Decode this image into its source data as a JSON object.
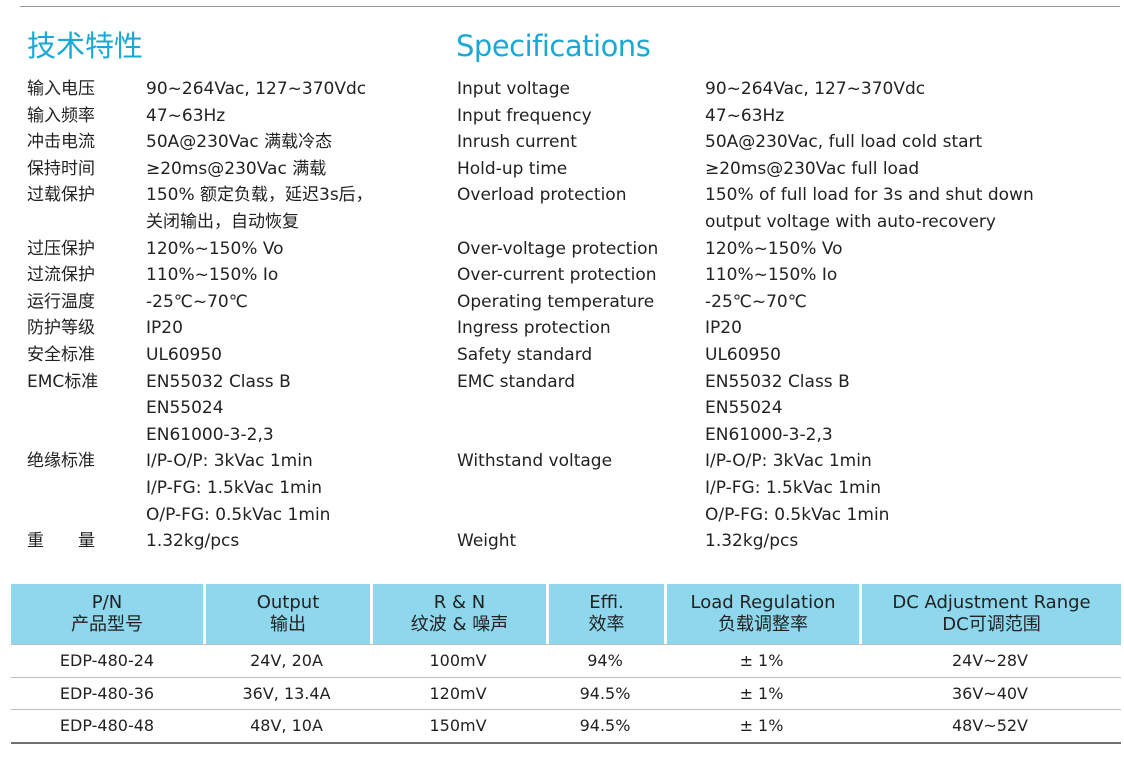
{
  "heading_cn": "技术特性",
  "heading_en": "Specifications",
  "specs_cn": [
    {
      "label": "输入电压",
      "lines": [
        "90~264Vac, 127~370Vdc"
      ]
    },
    {
      "label": "输入频率",
      "lines": [
        "47~63Hz"
      ]
    },
    {
      "label": "冲击电流",
      "lines": [
        "50A@230Vac 满载冷态"
      ]
    },
    {
      "label": "保持时间",
      "lines": [
        "≥20ms@230Vac 满载"
      ]
    },
    {
      "label": "过载保护",
      "lines": [
        "150% 额定负载，延迟3s后，",
        "关闭输出，自动恢复"
      ]
    },
    {
      "label": "过压保护",
      "lines": [
        "120%~150% Vo"
      ]
    },
    {
      "label": "过流保护",
      "lines": [
        "110%~150% Io"
      ]
    },
    {
      "label": "运行温度",
      "lines": [
        "-25℃~70℃"
      ]
    },
    {
      "label": "防护等级",
      "lines": [
        "IP20"
      ]
    },
    {
      "label": "安全标准",
      "lines": [
        "UL60950"
      ]
    },
    {
      "label": "EMC标准",
      "lines": [
        "EN55032 Class B",
        "EN55024",
        "EN61000-3-2,3"
      ]
    },
    {
      "label": "绝缘标准",
      "lines": [
        "I/P-O/P: 3kVac 1min",
        "I/P-FG: 1.5kVac 1min",
        "O/P-FG: 0.5kVac 1min"
      ]
    },
    {
      "label": "重　　量",
      "lines": [
        "1.32kg/pcs"
      ]
    }
  ],
  "specs_en": [
    {
      "label": "Input voltage",
      "lines": [
        "90~264Vac, 127~370Vdc"
      ]
    },
    {
      "label": "Input frequency",
      "lines": [
        "47~63Hz"
      ]
    },
    {
      "label": "Inrush current",
      "lines": [
        "50A@230Vac, full load cold start"
      ]
    },
    {
      "label": "Hold-up time",
      "lines": [
        "≥20ms@230Vac full load"
      ]
    },
    {
      "label": "Overload protection",
      "lines": [
        "150% of full load for 3s and shut down",
        "output voltage with auto-recovery"
      ]
    },
    {
      "label": "Over-voltage protection",
      "lines": [
        "120%~150% Vo"
      ]
    },
    {
      "label": "Over-current protection",
      "lines": [
        "110%~150% Io"
      ]
    },
    {
      "label": "Operating temperature",
      "lines": [
        "-25℃~70℃"
      ]
    },
    {
      "label": "Ingress protection",
      "lines": [
        "IP20"
      ]
    },
    {
      "label": "Safety standard",
      "lines": [
        "UL60950"
      ]
    },
    {
      "label": "EMC standard",
      "lines": [
        "EN55032 Class B",
        "EN55024",
        "EN61000-3-2,3"
      ]
    },
    {
      "label": "Withstand voltage",
      "lines": [
        "I/P-O/P: 3kVac 1min",
        "I/P-FG: 1.5kVac 1min",
        "O/P-FG: 0.5kVac 1min"
      ]
    },
    {
      "label": "Weight",
      "lines": [
        "1.32kg/pcs"
      ]
    }
  ],
  "model_table": {
    "headers": [
      {
        "en": "P/N",
        "cn": "产品型号"
      },
      {
        "en": "Output",
        "cn": "输出"
      },
      {
        "en": "R & N",
        "cn": "纹波 & 噪声"
      },
      {
        "en": "Effi.",
        "cn": "效率"
      },
      {
        "en": "Load Regulation",
        "cn": "负载调整率"
      },
      {
        "en": "DC Adjustment Range",
        "cn": "DC可调范围"
      }
    ],
    "rows": [
      [
        "EDP-480-24",
        "24V, 20A",
        "100mV",
        "94%",
        "± 1%",
        "24V~28V"
      ],
      [
        "EDP-480-36",
        "36V, 13.4A",
        "120mV",
        "94.5%",
        "± 1%",
        "36V~40V"
      ],
      [
        "EDP-480-48",
        "48V, 10A",
        "150mV",
        "94.5%",
        "± 1%",
        "48V~52V"
      ]
    ]
  },
  "colors": {
    "accent": "#1aa9d6",
    "header_bg": "#8fd7ec"
  }
}
